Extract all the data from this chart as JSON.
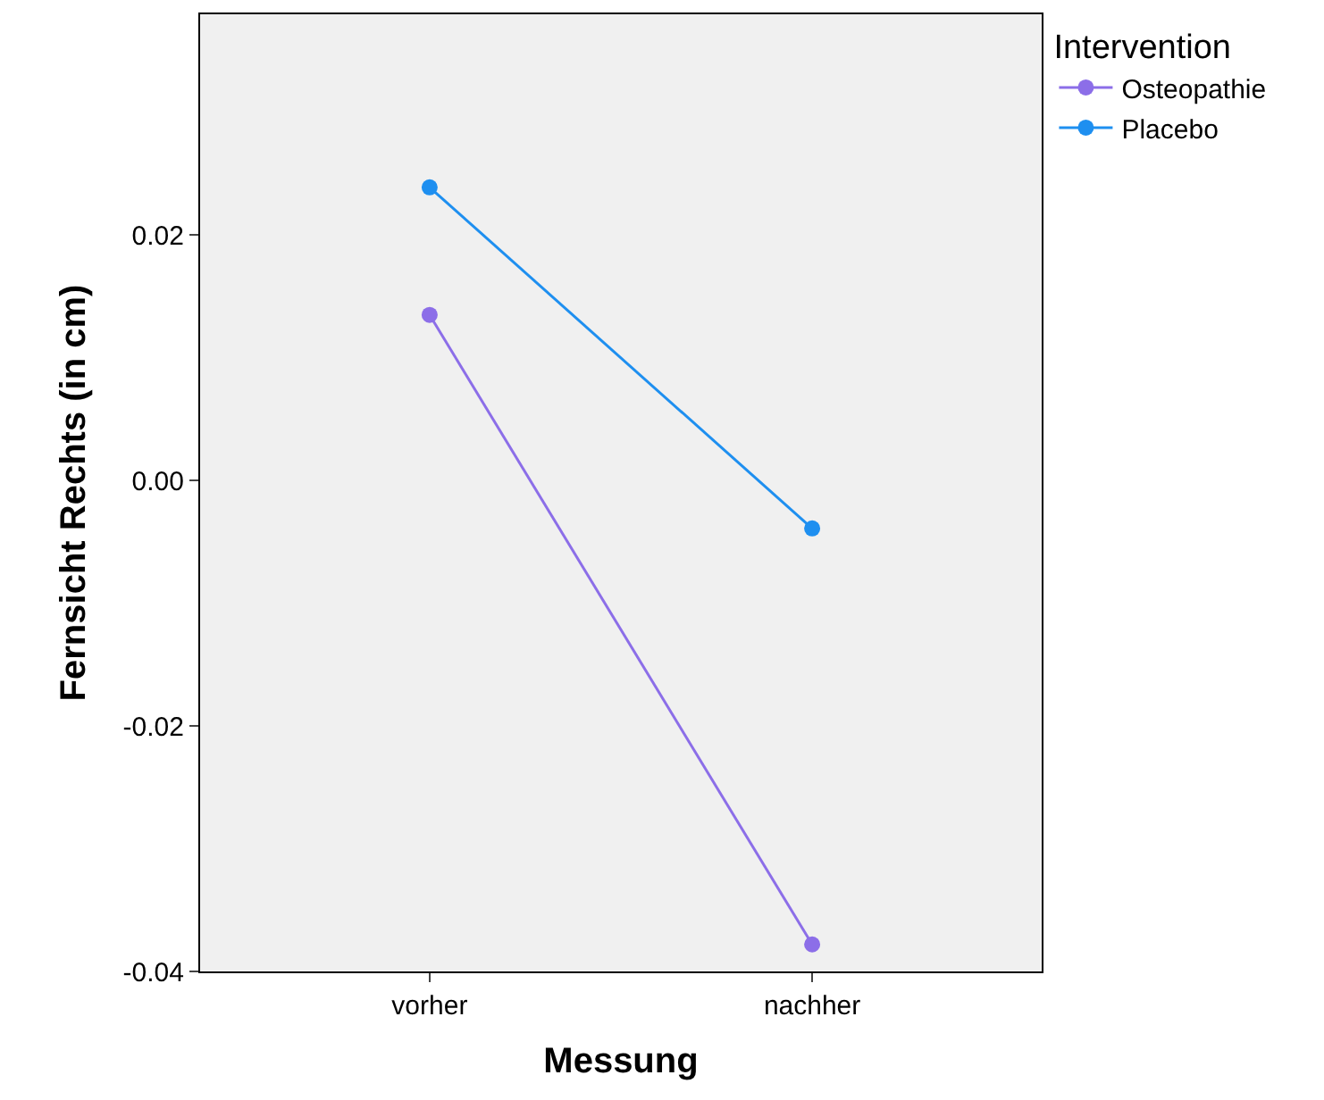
{
  "chart_data": {
    "type": "line",
    "xlabel": "Messung",
    "ylabel": "Fernsicht Rechts (in cm)",
    "legend_title": "Intervention",
    "categories": [
      "vorher",
      "nachher"
    ],
    "series": [
      {
        "name": "Osteopathie",
        "color": "#8c6ee8",
        "values": [
          0.0135,
          -0.0378
        ]
      },
      {
        "name": "Placebo",
        "color": "#1e8ff0",
        "values": [
          0.0239,
          -0.0039
        ]
      }
    ],
    "ylim": [
      -0.04,
      0.038
    ],
    "yticks": [
      {
        "value": -0.04,
        "label": "-0.04"
      },
      {
        "value": -0.02,
        "label": "-0.02"
      },
      {
        "value": 0,
        "label": "0.00"
      },
      {
        "value": 0.02,
        "label": "0.02"
      }
    ],
    "grid": false,
    "legend": "top right",
    "marker": "circle",
    "line_style": "solid"
  }
}
